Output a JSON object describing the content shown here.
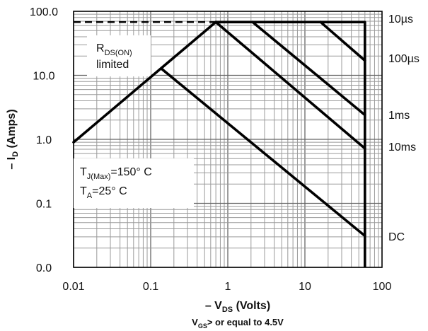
{
  "chart_data": {
    "type": "line",
    "scale": {
      "x": "log",
      "y": "log"
    },
    "xlim": [
      0.01,
      100
    ],
    "ylim": [
      0.01,
      100
    ],
    "grid": true,
    "x_ticks": [
      {
        "value": 0.01,
        "label": "0.01"
      },
      {
        "value": 0.1,
        "label": "0.1"
      },
      {
        "value": 1,
        "label": "1"
      },
      {
        "value": 10,
        "label": "10"
      },
      {
        "value": 100,
        "label": "100"
      }
    ],
    "y_ticks": [
      {
        "value": 100,
        "label": "100.0"
      },
      {
        "value": 10,
        "label": "10.0"
      },
      {
        "value": 1,
        "label": "1.0"
      },
      {
        "value": 0.1,
        "label": "0.1"
      },
      {
        "value": 0.01,
        "label": "0.0"
      }
    ],
    "xlabel": {
      "prefix": "– V",
      "sub": "DS",
      "suffix": " (Volts)"
    },
    "xlabel_note": {
      "prefix": "V",
      "sub": "GS",
      "suffix": "> or equal to 4.5V"
    },
    "ylabel": {
      "prefix": "– I",
      "sub": "D",
      "suffix": " (Amps)"
    },
    "current_limit": {
      "value": 68
    },
    "voltage_limit": {
      "value": 60
    },
    "rds_line": [
      [
        0.01,
        0.9
      ],
      [
        0.7,
        68
      ]
    ],
    "series": [
      {
        "name": "10µs",
        "label_at": 68,
        "points": [
          [
            0.7,
            68
          ],
          [
            60,
            68
          ]
        ]
      },
      {
        "name": "100µs",
        "label_at": 17,
        "points": [
          [
            16,
            68
          ],
          [
            60,
            17
          ]
        ]
      },
      {
        "name": "1ms",
        "label_at": 2.4,
        "points": [
          [
            2.1,
            68
          ],
          [
            60,
            2.4
          ]
        ]
      },
      {
        "name": "10ms",
        "label_at": 0.72,
        "points": [
          [
            0.7,
            68
          ],
          [
            60,
            0.72
          ]
        ]
      },
      {
        "name": "DC",
        "label_at": 0.031,
        "points": [
          [
            0.14,
            12.5
          ],
          [
            60,
            0.031
          ]
        ]
      }
    ],
    "annotations": {
      "rds": {
        "prefix": "R",
        "sub": "DS(ON)",
        "line2": "limited"
      },
      "tj": {
        "prefix": "T",
        "sub": "J(Max)",
        "suffix": "=150° C"
      },
      "ta": {
        "prefix": "T",
        "sub": "A",
        "suffix": "=25° C"
      }
    }
  }
}
